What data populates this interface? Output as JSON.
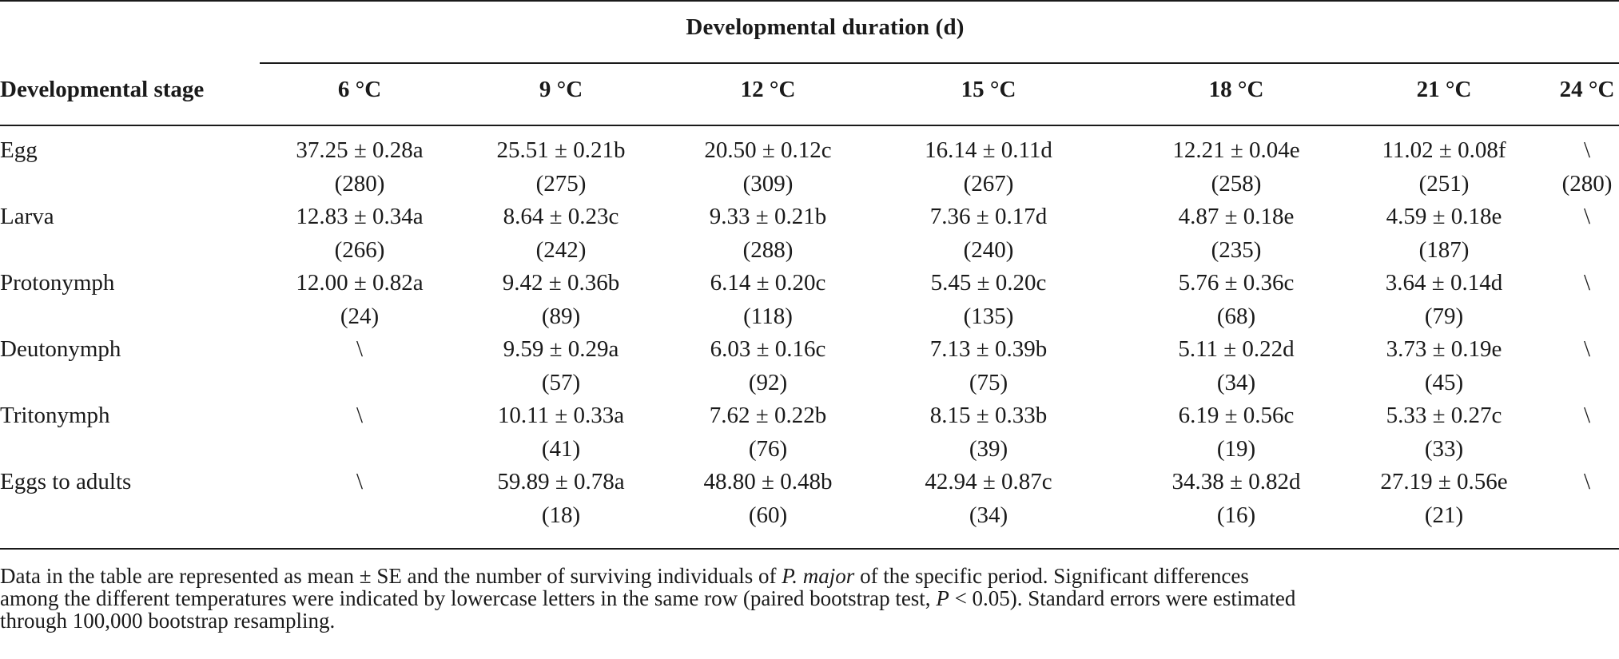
{
  "table": {
    "spanner": "Developmental duration (d)",
    "stage_header": "Developmental stage",
    "temperatures": [
      "6 °C",
      "9 °C",
      "12 °C",
      "15 °C",
      "18 °C",
      "21 °C",
      "24 °C"
    ],
    "rows": [
      {
        "stage": "Egg",
        "cells": [
          {
            "value": "37.25 ± 0.28a",
            "n": "(280)"
          },
          {
            "value": "25.51 ± 0.21b",
            "n": "(275)"
          },
          {
            "value": "20.50 ± 0.12c",
            "n": "(309)"
          },
          {
            "value": "16.14 ± 0.11d",
            "n": "(267)"
          },
          {
            "value": "12.21 ± 0.04e",
            "n": "(258)"
          },
          {
            "value": "11.02 ± 0.08f",
            "n": "(251)"
          },
          {
            "value": "\\",
            "n": "(280)"
          }
        ]
      },
      {
        "stage": "Larva",
        "cells": [
          {
            "value": "12.83 ± 0.34a",
            "n": "(266)"
          },
          {
            "value": "8.64 ± 0.23c",
            "n": "(242)"
          },
          {
            "value": "9.33 ± 0.21b",
            "n": "(288)"
          },
          {
            "value": "7.36 ± 0.17d",
            "n": "(240)"
          },
          {
            "value": "4.87 ± 0.18e",
            "n": "(235)"
          },
          {
            "value": "4.59 ± 0.18e",
            "n": "(187)"
          },
          {
            "value": "\\",
            "n": ""
          }
        ]
      },
      {
        "stage": "Protonymph",
        "cells": [
          {
            "value": "12.00 ± 0.82a",
            "n": "(24)"
          },
          {
            "value": "9.42 ± 0.36b",
            "n": "(89)"
          },
          {
            "value": "6.14 ± 0.20c",
            "n": "(118)"
          },
          {
            "value": "5.45 ± 0.20c",
            "n": "(135)"
          },
          {
            "value": "5.76 ± 0.36c",
            "n": "(68)"
          },
          {
            "value": "3.64 ± 0.14d",
            "n": "(79)"
          },
          {
            "value": "\\",
            "n": ""
          }
        ]
      },
      {
        "stage": "Deutonymph",
        "cells": [
          {
            "value": "\\",
            "n": ""
          },
          {
            "value": "9.59 ± 0.29a",
            "n": "(57)"
          },
          {
            "value": "6.03 ± 0.16c",
            "n": "(92)"
          },
          {
            "value": "7.13 ± 0.39b",
            "n": "(75)"
          },
          {
            "value": "5.11 ± 0.22d",
            "n": "(34)"
          },
          {
            "value": "3.73 ± 0.19e",
            "n": "(45)"
          },
          {
            "value": "\\",
            "n": ""
          }
        ]
      },
      {
        "stage": "Tritonymph",
        "cells": [
          {
            "value": "\\",
            "n": ""
          },
          {
            "value": "10.11 ± 0.33a",
            "n": "(41)"
          },
          {
            "value": "7.62 ± 0.22b",
            "n": "(76)"
          },
          {
            "value": "8.15 ± 0.33b",
            "n": "(39)"
          },
          {
            "value": "6.19 ± 0.56c",
            "n": "(19)"
          },
          {
            "value": "5.33 ± 0.27c",
            "n": "(33)"
          },
          {
            "value": "\\",
            "n": ""
          }
        ]
      },
      {
        "stage": "Eggs to adults",
        "cells": [
          {
            "value": "\\",
            "n": ""
          },
          {
            "value": "59.89 ± 0.78a",
            "n": "(18)"
          },
          {
            "value": "48.80 ± 0.48b",
            "n": "(60)"
          },
          {
            "value": "42.94 ± 0.87c",
            "n": "(34)"
          },
          {
            "value": "34.38 ± 0.82d",
            "n": "(16)"
          },
          {
            "value": "27.19 ± 0.56e",
            "n": "(21)"
          },
          {
            "value": "\\",
            "n": ""
          }
        ]
      }
    ]
  },
  "note": {
    "line1_before": "Data in the table are represented as mean ± SE and the number of surviving individuals of ",
    "species": "P. major",
    "line1_after": " of the specific period. Significant differences",
    "line2_before": "among the different temperatures were indicated by lowercase letters in the same row (paired bootstrap test, ",
    "p_symbol": "P",
    "line2_after": " < 0.05). Standard errors were estimated",
    "line3": "through 100,000 bootstrap resampling."
  }
}
